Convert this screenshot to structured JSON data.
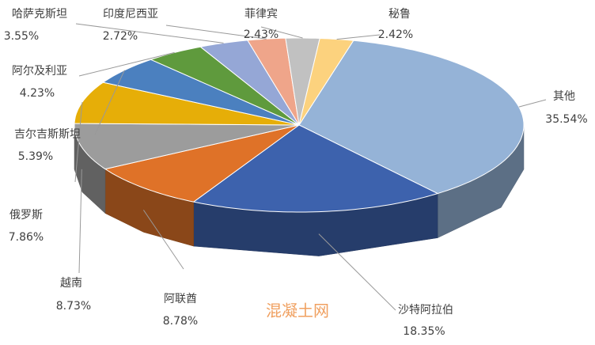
{
  "chart_data": {
    "type": "pie3d",
    "categories": [
      "其他",
      "沙特阿拉伯",
      "阿联酋",
      "越南",
      "俄罗斯",
      "吉尔吉斯斯坦",
      "阿尔及利亚",
      "哈萨克斯坦",
      "印度尼西亚",
      "菲律宾",
      "秘鲁"
    ],
    "values": [
      35.54,
      18.35,
      8.78,
      8.73,
      7.86,
      5.39,
      4.23,
      3.55,
      2.72,
      2.43,
      2.42
    ],
    "value_labels": [
      "35.54%",
      "18.35%",
      "8.78%",
      "8.73%",
      "7.86%",
      "5.39%",
      "4.23%",
      "3.55%",
      "2.72%",
      "2.43%",
      "2.42%"
    ],
    "colors": [
      "#95b3d7",
      "#3d62ad",
      "#df7228",
      "#9c9c9c",
      "#e6ae08",
      "#4b80bf",
      "#5f9a3d",
      "#95a7d6",
      "#efa58a",
      "#c1c1c1",
      "#fcd27e"
    ],
    "watermark": "混凝土网"
  }
}
